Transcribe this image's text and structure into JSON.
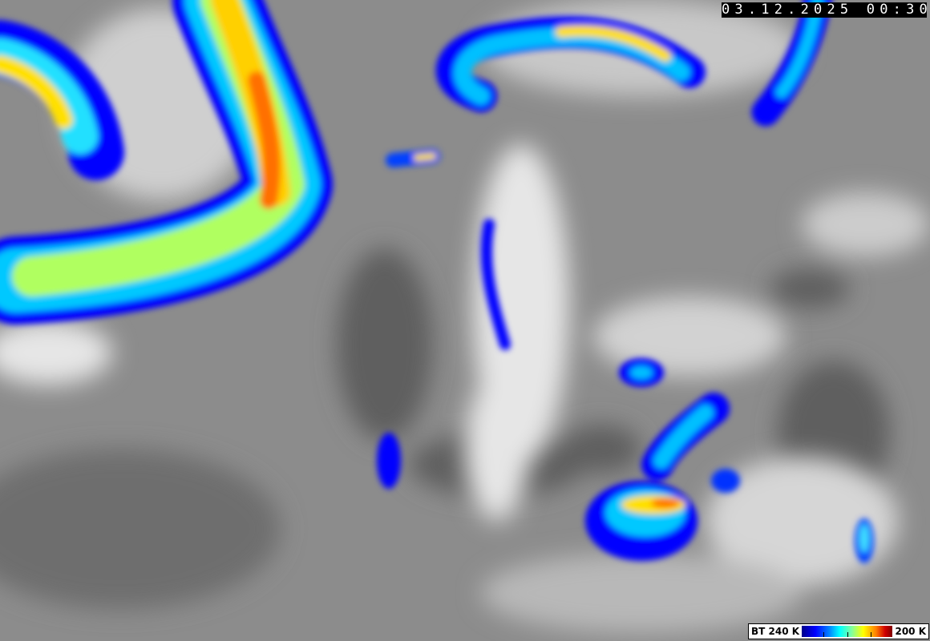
{
  "timestamp": "03.12.2025 00:30",
  "legend": {
    "min_label": "BT 240 K",
    "max_label": "200 K",
    "colors": [
      "#00008a",
      "#0000ff",
      "#0080ff",
      "#00ffff",
      "#80ffa0",
      "#ffff00",
      "#ff8000",
      "#d00000",
      "#800000"
    ]
  },
  "colors": {
    "background_gray": "#8c8c8c",
    "cloud_white": "#f0f0f0",
    "dark_surface": "#555555"
  }
}
